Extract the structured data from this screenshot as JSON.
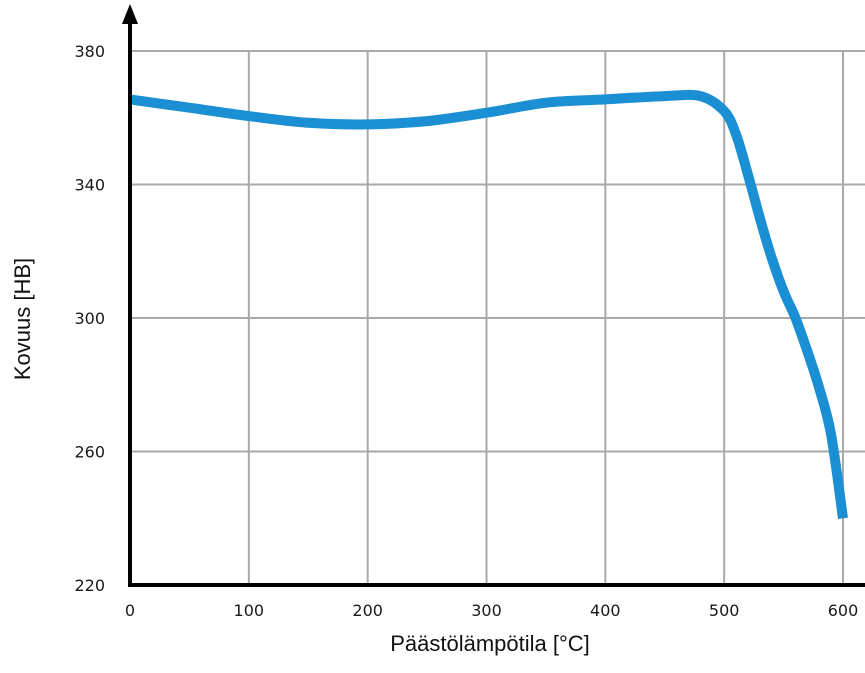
{
  "chart_data": {
    "type": "line",
    "title": "",
    "xlabel": "Päästölämpötila [°C]",
    "ylabel": "Kovuus [HB]",
    "xlim": [
      0,
      600
    ],
    "ylim": [
      220,
      380
    ],
    "x_ticks": [
      0,
      100,
      200,
      300,
      400,
      500,
      600
    ],
    "y_ticks": [
      220,
      260,
      300,
      340,
      380
    ],
    "grid": true,
    "series": [
      {
        "color": "#1b8fd4",
        "x": [
          0,
          50,
          100,
          150,
          200,
          250,
          300,
          350,
          400,
          450,
          480,
          500,
          510,
          520,
          530,
          540,
          550,
          560,
          570,
          580,
          590,
          600
        ],
        "y": [
          365.5,
          363,
          360.5,
          358.5,
          358,
          359,
          361.5,
          364.5,
          365.5,
          366.5,
          366.5,
          362,
          355,
          343,
          330,
          318,
          308,
          300,
          290,
          279,
          265,
          240
        ]
      }
    ]
  }
}
